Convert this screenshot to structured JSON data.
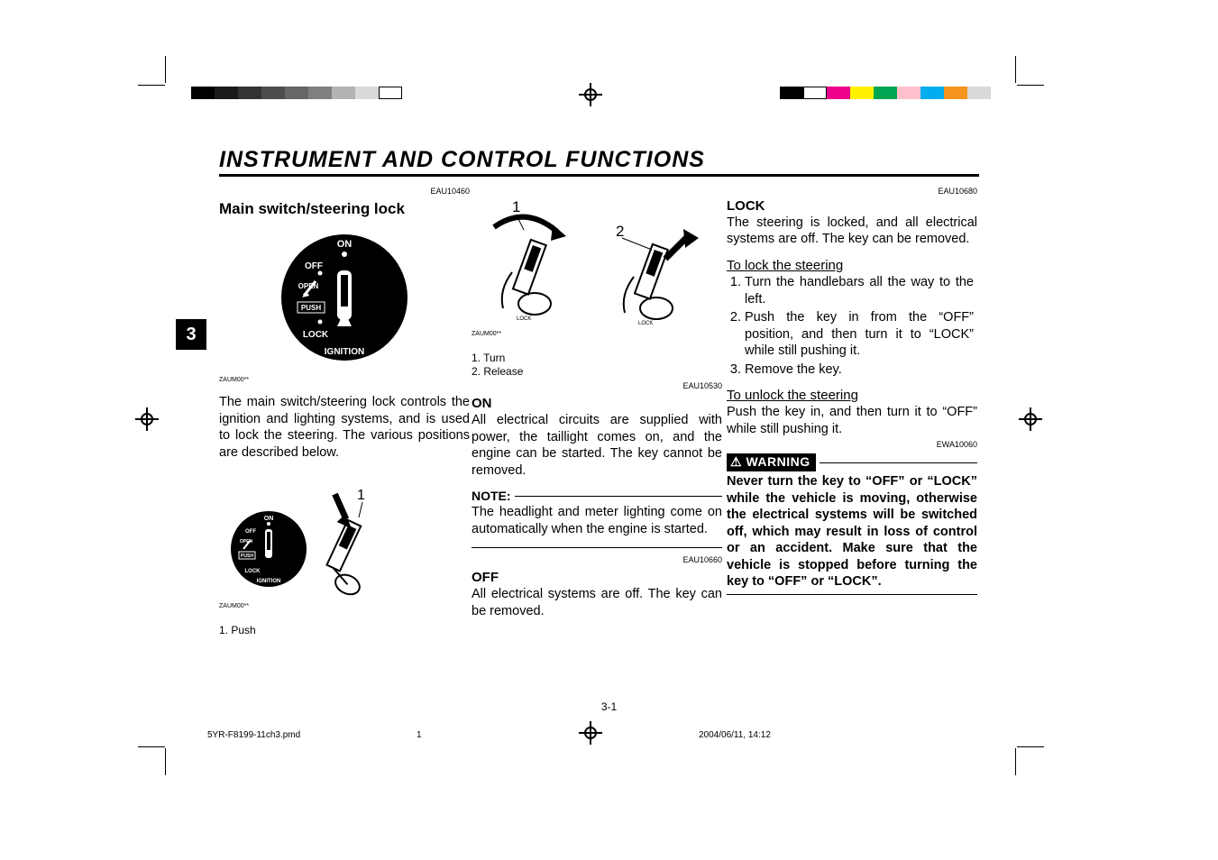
{
  "print_marks": {
    "gray_shades": [
      "#000000",
      "#1a1a1a",
      "#333333",
      "#4d4d4d",
      "#666666",
      "#808080",
      "#b3b3b3",
      "#d9d9d9",
      "#ffffff"
    ],
    "color_swatches": [
      "#000000",
      "#ffffff",
      "#ec008c",
      "#fff200",
      "#00a651",
      "#ffc0cb",
      "#00aeef",
      "#f7941d",
      "#d9d9d9"
    ]
  },
  "chapter_tab": "3",
  "chapter_title": "INSTRUMENT  AND  CONTROL  FUNCTIONS",
  "col1": {
    "code": "EAU10460",
    "heading": "Main switch/steering lock",
    "dial": {
      "labels": {
        "on": "ON",
        "off": "OFF",
        "open": "OPEN",
        "push": "PUSH",
        "lock": "LOCK",
        "ignition": "IGNITION"
      },
      "colors": {
        "outer": "#000000",
        "text": "#ffffff"
      }
    },
    "fig_code_1": "ZAUM00**",
    "body": "The main switch/steering lock controls the ignition and lighting systems, and is used to lock the steering. The various positions are described below.",
    "fig2_callout": "1",
    "fig_code_2": "ZAUM00**",
    "fig2_label": "1. Push"
  },
  "col2": {
    "fig_callouts": {
      "c1": "1",
      "c2": "2"
    },
    "fig_code": "ZAUM00**",
    "fig_labels": {
      "l1": "1. Turn",
      "l2": "2. Release"
    },
    "on_code": "EAU10530",
    "on_head": "ON",
    "on_body": "All electrical circuits are supplied with power, the taillight comes on, and the engine can be started. The key cannot be removed.",
    "note_label": "NOTE:",
    "note_body": "The headlight and meter lighting come on automatically when the engine is started.",
    "off_code": "EAU10660",
    "off_head": "OFF",
    "off_body": "All electrical systems are off. The key can be removed."
  },
  "col3": {
    "lock_code": "EAU10680",
    "lock_head": "LOCK",
    "lock_body": "The steering is locked, and all electrical systems are off. The key can be removed.",
    "to_lock_head": "To lock the steering",
    "lock_steps": [
      "Turn the handlebars all the way to the left.",
      "Push the key in from the “OFF” position, and then turn it to “LOCK” while still pushing it.",
      "Remove the key."
    ],
    "to_unlock_head": "To unlock the steering",
    "unlock_body": "Push the key in, and then turn it to “OFF” while still pushing it.",
    "warn_code": "EWA10060",
    "warn_label": "⚠ WARNING",
    "warn_body": "Never turn the key to “OFF” or “LOCK” while the vehicle is moving, otherwise the electrical systems will be switched off, which may result in loss of control or an accident. Make sure that the vehicle is stopped before turning the key to “OFF” or “LOCK”."
  },
  "footer": {
    "page": "3-1",
    "file": "5YR-F8199-11ch3.pmd",
    "sheet": "1",
    "timestamp": "2004/06/11, 14:12"
  }
}
